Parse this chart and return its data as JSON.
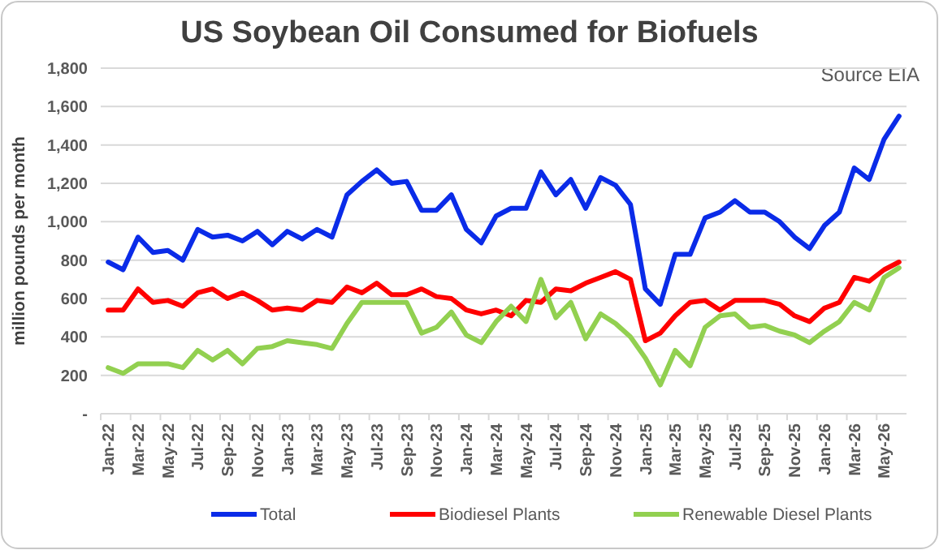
{
  "chart_data": {
    "type": "line",
    "title": "US Soybean Oil Consumed for Biofuels",
    "ylabel": "million pounds per month",
    "annotations": [
      "Source EIA"
    ],
    "categories": [
      "Jan-22",
      null,
      "Mar-22",
      null,
      "May-22",
      null,
      "Jul-22",
      null,
      "Sep-22",
      null,
      "Nov-22",
      null,
      "Jan-23",
      null,
      "Mar-23",
      null,
      "May-23",
      null,
      "Jul-23",
      null,
      "Sep-23",
      null,
      "Nov-23",
      null,
      "Jan-24",
      null,
      "Mar-24",
      null,
      "May-24",
      null,
      "Jul-24",
      null,
      "Sep-24",
      null,
      "Nov-24",
      null,
      "Jan-25",
      null,
      "Mar-25",
      null,
      "May-25",
      null,
      "Jul-25",
      null,
      "Sep-25",
      null,
      "Nov-25",
      null,
      "Jan-26",
      null,
      "Mar-26",
      null,
      "May-26",
      null
    ],
    "series": [
      {
        "name": "Total",
        "color": "#0a2be8",
        "values": [
          790,
          750,
          920,
          840,
          850,
          800,
          960,
          920,
          930,
          900,
          950,
          880,
          950,
          910,
          960,
          920,
          1140,
          1210,
          1270,
          1200,
          1210,
          1060,
          1060,
          1140,
          960,
          890,
          1030,
          1070,
          1070,
          1260,
          1140,
          1220,
          1070,
          1230,
          1190,
          1090,
          650,
          570,
          830,
          830,
          1020,
          1050,
          1110,
          1050,
          1050,
          1000,
          920,
          860,
          980,
          1050,
          1280,
          1220,
          1430,
          1550
        ]
      },
      {
        "name": "Biodiesel Plants",
        "color": "#ff0000",
        "values": [
          540,
          540,
          650,
          580,
          590,
          560,
          630,
          650,
          600,
          630,
          590,
          540,
          550,
          540,
          590,
          580,
          660,
          630,
          680,
          620,
          620,
          650,
          610,
          600,
          540,
          520,
          540,
          510,
          590,
          580,
          650,
          640,
          680,
          710,
          740,
          700,
          380,
          420,
          510,
          580,
          590,
          540,
          590,
          590,
          590,
          570,
          510,
          480,
          550,
          580,
          710,
          690,
          750,
          790
        ]
      },
      {
        "name": "Renewable Diesel Plants",
        "color": "#92d050",
        "values": [
          240,
          210,
          260,
          260,
          260,
          240,
          330,
          280,
          330,
          260,
          340,
          350,
          380,
          370,
          360,
          340,
          470,
          580,
          580,
          580,
          580,
          420,
          450,
          530,
          410,
          370,
          480,
          560,
          480,
          700,
          500,
          580,
          390,
          520,
          470,
          400,
          290,
          150,
          330,
          250,
          450,
          510,
          520,
          450,
          460,
          430,
          410,
          370,
          430,
          480,
          580,
          540,
          710,
          760
        ]
      }
    ],
    "ylim": [
      0,
      1800
    ],
    "yticks": [
      {
        "value": 0,
        "label": "-"
      },
      {
        "value": 200,
        "label": "200"
      },
      {
        "value": 400,
        "label": "400"
      },
      {
        "value": 600,
        "label": "600"
      },
      {
        "value": 800,
        "label": "800"
      },
      {
        "value": 1000,
        "label": "1,000"
      },
      {
        "value": 1200,
        "label": "1,200"
      },
      {
        "value": 1400,
        "label": "1,400"
      },
      {
        "value": 1600,
        "label": "1,600"
      },
      {
        "value": 1800,
        "label": "1,800"
      }
    ],
    "grid": "y",
    "legend": "bottom",
    "marker": "none",
    "line_style": "solid"
  }
}
